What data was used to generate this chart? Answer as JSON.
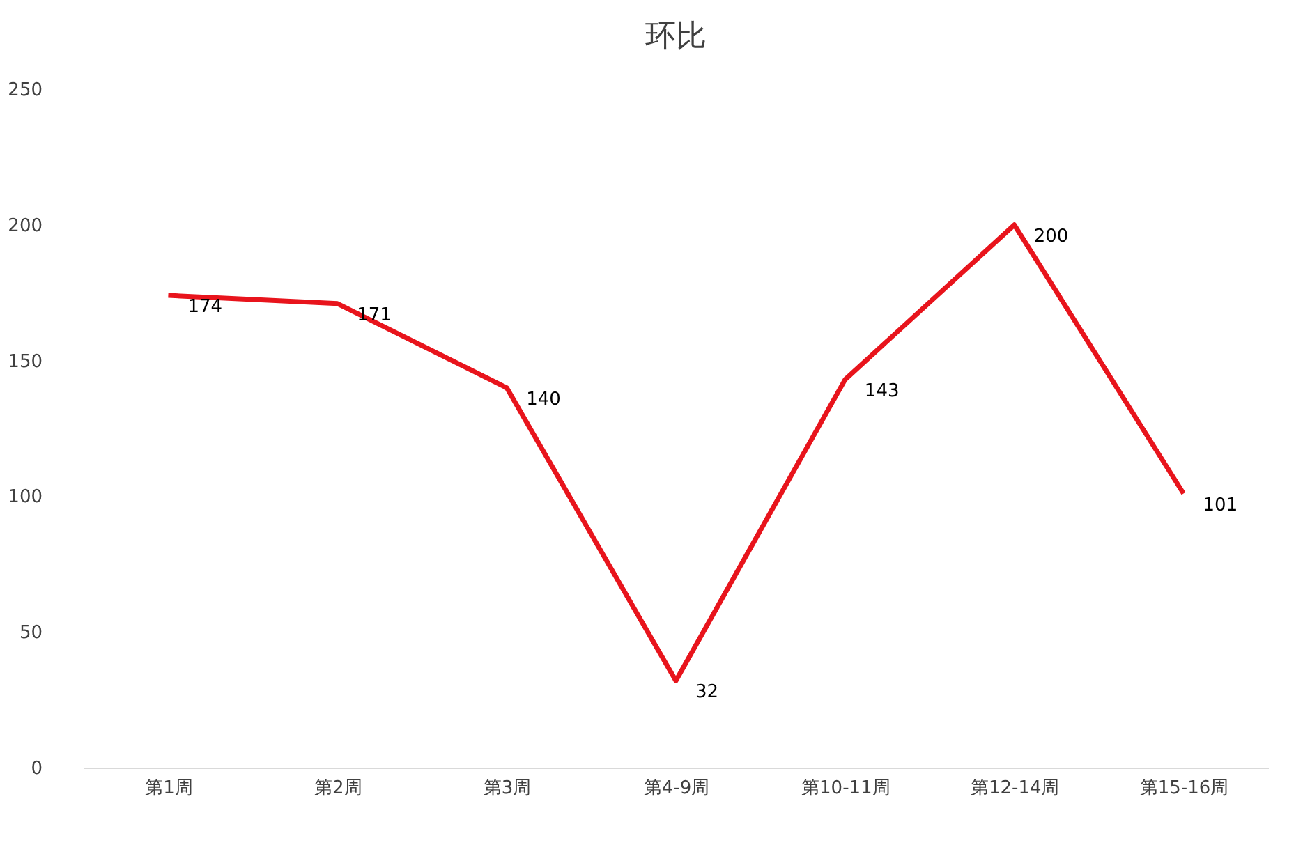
{
  "chart_data": {
    "type": "line",
    "title": "环比",
    "categories": [
      "第1周",
      "第2周",
      "第3周",
      "第4-9周",
      "第10-11周",
      "第12-14周",
      "第15-16周"
    ],
    "series": [
      {
        "color": "#e8141c",
        "values": [
          174,
          171,
          140,
          32,
          143,
          200,
          101
        ]
      }
    ],
    "ylim": [
      0,
      250
    ],
    "yticks": [
      0,
      50,
      100,
      150,
      200,
      250
    ],
    "grid": false,
    "legend": false,
    "marker": "none",
    "line_style": "solid",
    "data_labels": true
  }
}
